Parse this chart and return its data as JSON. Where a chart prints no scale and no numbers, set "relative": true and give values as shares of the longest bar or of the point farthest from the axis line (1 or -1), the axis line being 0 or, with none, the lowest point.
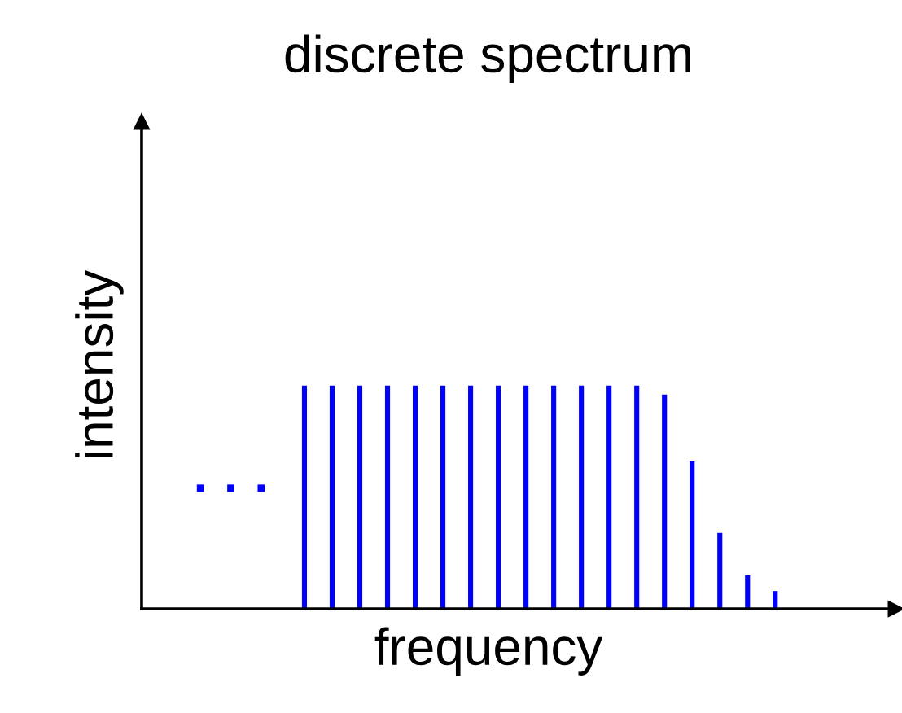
{
  "chart_data": {
    "type": "bar",
    "title": "discrete spectrum",
    "xlabel": "frequency",
    "ylabel": "intensity",
    "relative": true,
    "tick_labels": false,
    "annotations": [
      "· · ·"
    ],
    "categories": [
      null,
      null,
      null,
      null,
      null,
      null,
      null,
      null,
      null,
      null,
      null,
      null,
      null,
      null,
      null,
      null,
      null,
      null
    ],
    "series": [
      {
        "color": "#0000ff",
        "values": [
          1,
          1,
          1,
          1,
          1,
          1,
          1,
          1,
          1,
          1,
          1,
          1,
          1,
          0.96,
          0.66,
          0.34,
          0.15,
          0.08
        ]
      }
    ]
  }
}
